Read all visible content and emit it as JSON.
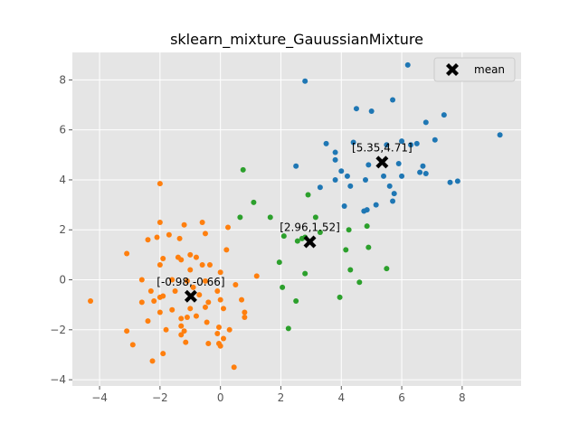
{
  "chart_data": {
    "type": "scatter",
    "title": "sklearn_mixture_GauussianMixture",
    "xlabel": "",
    "ylabel": "",
    "xlim": [
      -4.9,
      9.95
    ],
    "ylim": [
      -4.25,
      9.1
    ],
    "xticks": [
      -4,
      -2,
      0,
      2,
      4,
      6,
      8
    ],
    "yticks": [
      -4,
      -2,
      0,
      2,
      4,
      6,
      8
    ],
    "grid": true,
    "legend_position": "top-right",
    "colors": {
      "background": "#e5e5e5",
      "grid": "#ffffff",
      "cluster_0": "#1f77b4",
      "cluster_1": "#ff7f0e",
      "cluster_2": "#2ca02c",
      "mean": "#000000"
    },
    "clusters": [
      {
        "color_key": "cluster_0",
        "points": [
          [
            6.2,
            8.6
          ],
          [
            2.8,
            7.95
          ],
          [
            5.7,
            7.2
          ],
          [
            4.5,
            6.85
          ],
          [
            5.0,
            6.75
          ],
          [
            7.4,
            6.6
          ],
          [
            6.8,
            6.3
          ],
          [
            7.1,
            5.6
          ],
          [
            6.0,
            5.55
          ],
          [
            3.5,
            5.45
          ],
          [
            4.4,
            5.5
          ],
          [
            3.8,
            5.1
          ],
          [
            5.5,
            5.4
          ],
          [
            6.5,
            5.45
          ],
          [
            9.25,
            5.8
          ],
          [
            3.8,
            4.8
          ],
          [
            2.5,
            4.55
          ],
          [
            5.9,
            4.65
          ],
          [
            6.7,
            4.55
          ],
          [
            4.9,
            4.6
          ],
          [
            4.0,
            4.35
          ],
          [
            4.2,
            4.15
          ],
          [
            5.4,
            4.15
          ],
          [
            6.0,
            4.15
          ],
          [
            6.6,
            4.3
          ],
          [
            6.8,
            4.25
          ],
          [
            3.8,
            4.0
          ],
          [
            4.3,
            3.75
          ],
          [
            5.6,
            3.75
          ],
          [
            3.3,
            3.7
          ],
          [
            4.8,
            4.0
          ],
          [
            7.6,
            3.9
          ],
          [
            7.85,
            3.95
          ],
          [
            5.75,
            3.45
          ],
          [
            5.7,
            3.15
          ],
          [
            4.1,
            2.95
          ],
          [
            5.15,
            3.0
          ],
          [
            4.85,
            2.8
          ],
          [
            4.75,
            2.75
          ],
          [
            6.3,
            5.4
          ]
        ]
      },
      {
        "color_key": "cluster_1",
        "points": [
          [
            -2.0,
            3.85
          ],
          [
            -2.0,
            2.3
          ],
          [
            -0.6,
            2.3
          ],
          [
            -1.2,
            2.2
          ],
          [
            0.25,
            2.1
          ],
          [
            -2.1,
            1.7
          ],
          [
            -2.4,
            1.6
          ],
          [
            -1.7,
            1.8
          ],
          [
            -1.35,
            1.65
          ],
          [
            -0.5,
            1.85
          ],
          [
            0.2,
            1.2
          ],
          [
            -3.1,
            1.05
          ],
          [
            -1.0,
            1.0
          ],
          [
            -0.8,
            0.9
          ],
          [
            -1.4,
            0.9
          ],
          [
            -1.9,
            0.85
          ],
          [
            -1.3,
            0.8
          ],
          [
            -2.0,
            0.6
          ],
          [
            -0.35,
            0.6
          ],
          [
            -0.6,
            0.6
          ],
          [
            -1.0,
            0.4
          ],
          [
            0.0,
            0.3
          ],
          [
            -2.6,
            0.0
          ],
          [
            1.2,
            0.15
          ],
          [
            -1.6,
            0.0
          ],
          [
            -1.1,
            -0.05
          ],
          [
            -0.5,
            -0.05
          ],
          [
            0.5,
            -0.2
          ],
          [
            -2.3,
            -0.45
          ],
          [
            -0.9,
            -0.3
          ],
          [
            -1.5,
            -0.45
          ],
          [
            -0.1,
            -0.45
          ],
          [
            -2.0,
            -0.7
          ],
          [
            -2.2,
            -0.85
          ],
          [
            -0.4,
            -0.9
          ],
          [
            -4.3,
            -0.85
          ],
          [
            -1.9,
            -0.65
          ],
          [
            -2.6,
            -0.9
          ],
          [
            0.0,
            -0.8
          ],
          [
            0.7,
            -0.8
          ],
          [
            -1.0,
            -1.15
          ],
          [
            -0.5,
            -1.1
          ],
          [
            -1.6,
            -1.2
          ],
          [
            -2.0,
            -1.3
          ],
          [
            0.1,
            -1.15
          ],
          [
            -1.1,
            -1.5
          ],
          [
            -1.3,
            -1.55
          ],
          [
            -0.8,
            -1.45
          ],
          [
            0.8,
            -1.3
          ],
          [
            0.8,
            -1.5
          ],
          [
            -2.4,
            -1.65
          ],
          [
            -0.45,
            -1.7
          ],
          [
            -1.3,
            -1.85
          ],
          [
            -1.2,
            -2.05
          ],
          [
            -1.8,
            -2.0
          ],
          [
            0.3,
            -2.0
          ],
          [
            -0.1,
            -2.15
          ],
          [
            -3.1,
            -2.05
          ],
          [
            -1.3,
            -2.2
          ],
          [
            -0.4,
            -2.55
          ],
          [
            -0.05,
            -2.55
          ],
          [
            0.1,
            -2.35
          ],
          [
            0.0,
            -2.65
          ],
          [
            -2.9,
            -2.6
          ],
          [
            -1.15,
            -2.5
          ],
          [
            -1.9,
            -2.95
          ],
          [
            -2.25,
            -3.25
          ],
          [
            0.45,
            -3.5
          ],
          [
            -0.05,
            -1.9
          ],
          [
            -0.7,
            -0.6
          ]
        ]
      },
      {
        "color_key": "cluster_2",
        "points": [
          [
            0.75,
            4.4
          ],
          [
            2.9,
            3.4
          ],
          [
            1.1,
            3.1
          ],
          [
            0.65,
            2.5
          ],
          [
            1.65,
            2.5
          ],
          [
            3.15,
            2.5
          ],
          [
            4.85,
            2.15
          ],
          [
            4.25,
            2.0
          ],
          [
            3.3,
            1.9
          ],
          [
            2.1,
            1.75
          ],
          [
            2.55,
            1.55
          ],
          [
            2.7,
            1.65
          ],
          [
            2.8,
            1.7
          ],
          [
            4.9,
            1.3
          ],
          [
            4.15,
            1.2
          ],
          [
            1.95,
            0.7
          ],
          [
            5.5,
            0.45
          ],
          [
            4.3,
            0.4
          ],
          [
            2.8,
            0.25
          ],
          [
            2.05,
            -0.3
          ],
          [
            4.6,
            -0.1
          ],
          [
            2.5,
            -0.85
          ],
          [
            3.95,
            -0.7
          ],
          [
            2.25,
            -1.95
          ]
        ]
      }
    ],
    "means": [
      {
        "x": 5.35,
        "y": 4.71,
        "label": "[5.35,4.71]"
      },
      {
        "x": 2.96,
        "y": 1.52,
        "label": "[2.96,1.52]"
      },
      {
        "x": -0.98,
        "y": -0.66,
        "label": "[-0.98,-0.66]"
      }
    ],
    "legend": [
      {
        "label": "mean",
        "marker": "x"
      }
    ]
  }
}
